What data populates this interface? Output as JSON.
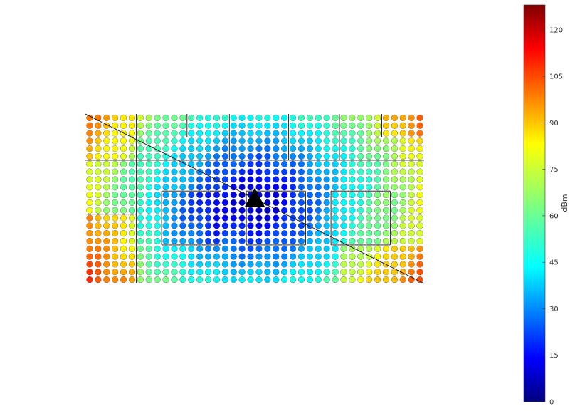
{
  "chart_data": {
    "type": "heatmap",
    "title": "",
    "xlabel": "",
    "ylabel": "",
    "colorbar": {
      "label": "dBm",
      "range": [
        0,
        128
      ],
      "ticks": [
        0,
        15,
        30,
        45,
        60,
        75,
        90,
        105,
        120
      ],
      "colormap": "jet"
    },
    "grid": false,
    "grid_size": {
      "cols": 40,
      "rows": 22
    },
    "transmitter": {
      "col": 19.5,
      "row": 11
    },
    "walls": [
      {
        "c0": 0,
        "r0": 0,
        "c1": 40,
        "r1": 22
      },
      {
        "c0": 6,
        "r0": 0,
        "c1": 6,
        "r1": 22
      },
      {
        "c0": 12,
        "r0": 0,
        "c1": 12,
        "r1": 3
      },
      {
        "c0": 17,
        "r0": 0,
        "c1": 17,
        "r1": 6
      },
      {
        "c0": 24,
        "r0": 0,
        "c1": 24,
        "r1": 6
      },
      {
        "c0": 30,
        "r0": 0,
        "c1": 30,
        "r1": 6
      },
      {
        "c0": 35,
        "r0": 0,
        "c1": 35,
        "r1": 3
      },
      {
        "c0": 0,
        "r0": 6,
        "c1": 40,
        "r1": 6
      },
      {
        "c0": 0,
        "r0": 13,
        "c1": 6,
        "r1": 13
      },
      {
        "c0": 9,
        "r0": 10,
        "c1": 16,
        "r1": 10
      },
      {
        "c0": 9,
        "r0": 10,
        "c1": 9,
        "r1": 17
      },
      {
        "c0": 9,
        "r0": 17,
        "c1": 16,
        "r1": 17
      },
      {
        "c0": 16,
        "r0": 10,
        "c1": 16,
        "r1": 17
      },
      {
        "c0": 19,
        "r0": 10,
        "c1": 26,
        "r1": 10
      },
      {
        "c0": 19,
        "r0": 10,
        "c1": 19,
        "r1": 17
      },
      {
        "c0": 19,
        "r0": 17,
        "c1": 26,
        "r1": 17
      },
      {
        "c0": 26,
        "r0": 10,
        "c1": 26,
        "r1": 17
      },
      {
        "c0": 29,
        "r0": 10,
        "c1": 36,
        "r1": 10
      },
      {
        "c0": 29,
        "r0": 10,
        "c1": 29,
        "r1": 17
      },
      {
        "c0": 29,
        "r0": 17,
        "c1": 36,
        "r1": 17
      },
      {
        "c0": 36,
        "r0": 10,
        "c1": 36,
        "r1": 17
      }
    ]
  }
}
